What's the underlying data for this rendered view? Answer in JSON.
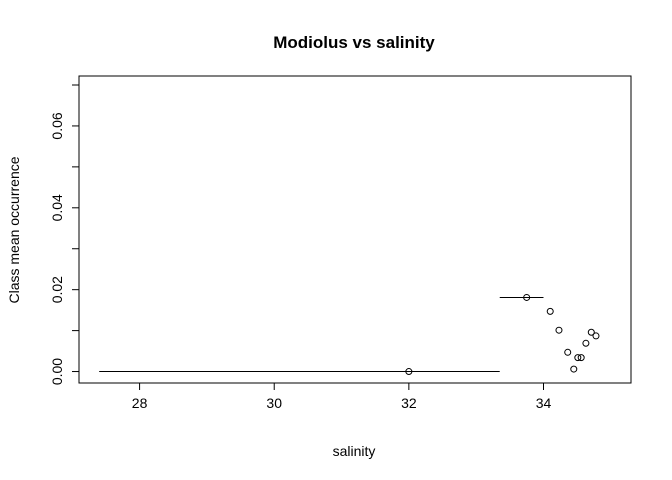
{
  "chart_data": {
    "type": "scatter",
    "title": "Modiolus vs salinity",
    "xlabel": "salinity",
    "ylabel": "Class mean occurrence",
    "xlim": [
      27.1,
      35.3
    ],
    "ylim": [
      -0.0028,
      0.0722
    ],
    "xticks": [
      28,
      30,
      32,
      34
    ],
    "xtick_labels": [
      "28",
      "30",
      "32",
      "34"
    ],
    "yticks": [
      0.0,
      0.01,
      0.02,
      0.03,
      0.04,
      0.05,
      0.06,
      0.07
    ],
    "ytick_labels": [
      "0.00",
      "",
      "0.02",
      "",
      "0.04",
      "",
      "0.06",
      ""
    ],
    "points": [
      {
        "x": 32.0,
        "y": 0.0,
        "xmin": 27.4,
        "xmax": 33.35
      },
      {
        "x": 33.75,
        "y": 0.0181,
        "xmin": 33.35,
        "xmax": 34.0
      },
      {
        "x": 34.1,
        "y": 0.0147
      },
      {
        "x": 34.23,
        "y": 0.0101
      },
      {
        "x": 34.36,
        "y": 0.0047
      },
      {
        "x": 34.45,
        "y": 0.0006
      },
      {
        "x": 34.51,
        "y": 0.0034
      },
      {
        "x": 34.56,
        "y": 0.0034
      },
      {
        "x": 34.63,
        "y": 0.0069
      },
      {
        "x": 34.71,
        "y": 0.0096
      },
      {
        "x": 34.78,
        "y": 0.0087
      }
    ]
  }
}
